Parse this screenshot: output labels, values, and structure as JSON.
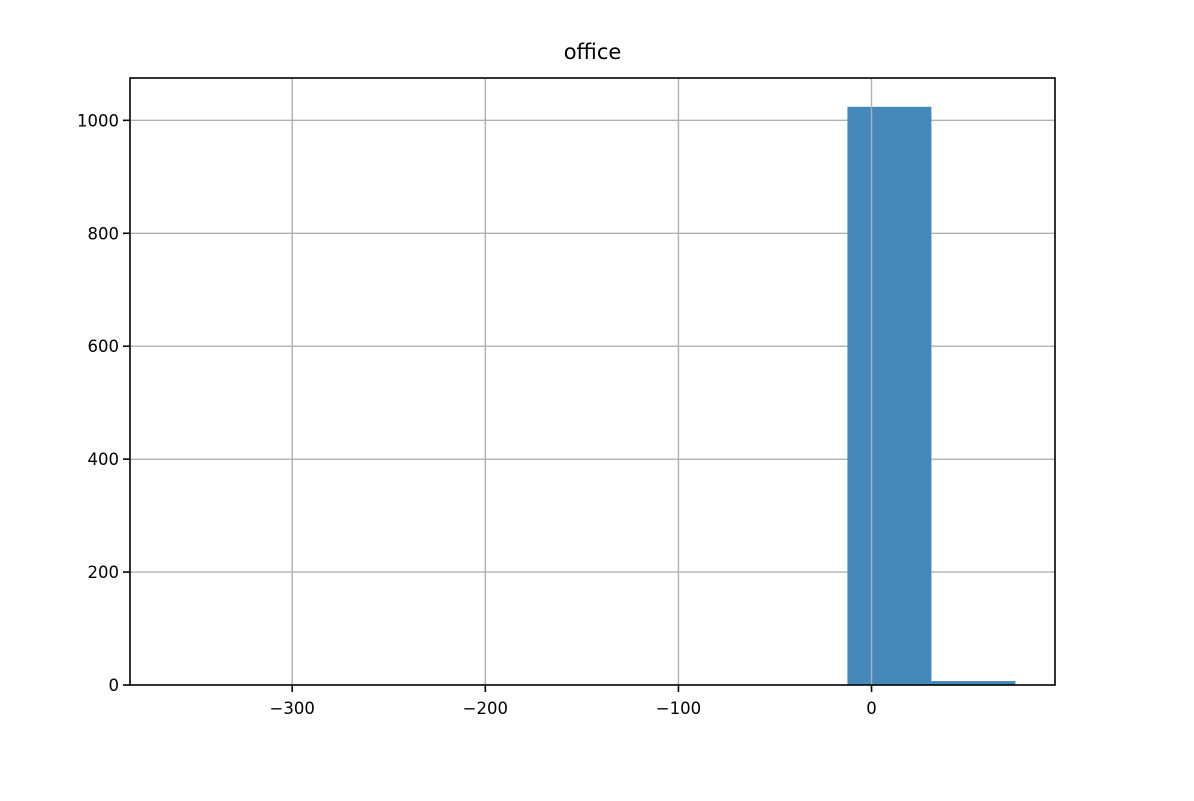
{
  "chart_data": {
    "type": "bar",
    "title": "office",
    "xlabel": "",
    "ylabel": "",
    "xlim": [
      -384,
      95
    ],
    "ylim": [
      0,
      1075
    ],
    "grid": true,
    "color": "#4589bc",
    "x_ticks": [
      {
        "value": -300,
        "label": "−300"
      },
      {
        "value": -200,
        "label": "−200"
      },
      {
        "value": -100,
        "label": "−100"
      },
      {
        "value": 0,
        "label": "0"
      }
    ],
    "y_ticks": [
      {
        "value": 0,
        "label": "0"
      },
      {
        "value": 200,
        "label": "200"
      },
      {
        "value": 400,
        "label": "400"
      },
      {
        "value": 600,
        "label": "600"
      },
      {
        "value": 800,
        "label": "800"
      },
      {
        "value": 1000,
        "label": "1000"
      }
    ],
    "bins": [
      {
        "x0": -12.5,
        "x1": 31,
        "count": 1024
      },
      {
        "x0": 31,
        "x1": 74.5,
        "count": 7
      }
    ]
  }
}
